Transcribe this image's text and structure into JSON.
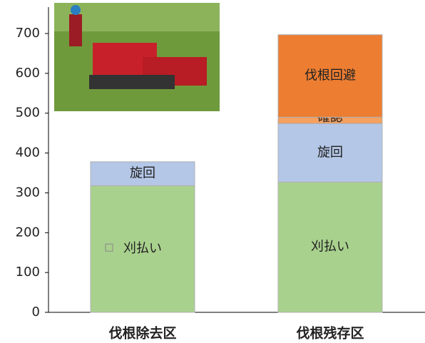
{
  "chart_data": {
    "type": "stacked_bar",
    "categories": [
      "伐根除去区",
      "伐根残存区"
    ],
    "series": [
      {
        "name": "刈払い",
        "color": "#a9d18e",
        "values": [
          318,
          327
        ]
      },
      {
        "name": "旋回",
        "color": "#b4c7e7",
        "values": [
          60,
          147
        ]
      },
      {
        "name": "確認",
        "color": "#f4a060",
        "values": [
          0,
          16
        ]
      },
      {
        "name": "伐根回避",
        "color": "#ed7d31",
        "values": [
          0,
          207
        ]
      }
    ],
    "ylim": [
      0,
      700
    ],
    "yticks": [
      0,
      100,
      200,
      300,
      400,
      500,
      600,
      700
    ]
  }
}
